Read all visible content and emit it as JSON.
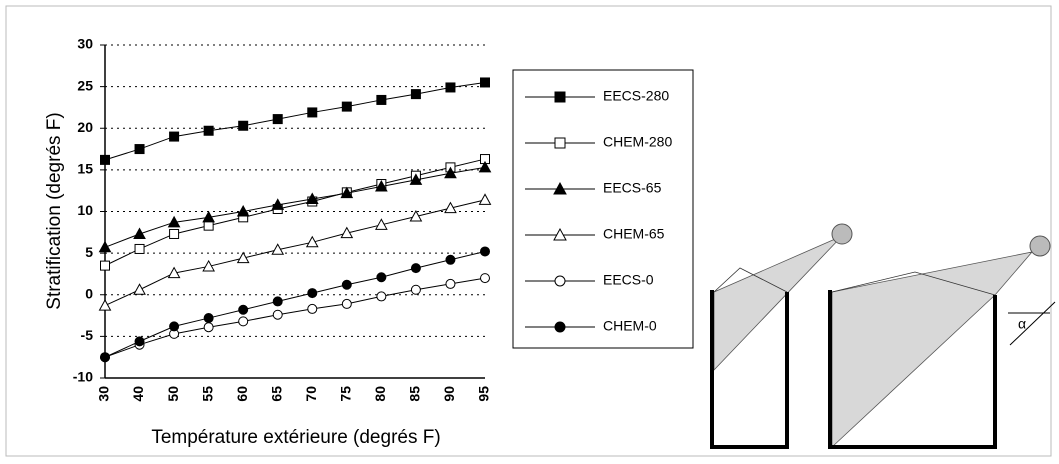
{
  "chart_data": {
    "type": "line",
    "y_label": "Stratification (degrés F)",
    "x_label": "Température extérieure (degrés F)",
    "categories": [
      30,
      40,
      50,
      55,
      60,
      65,
      70,
      75,
      80,
      85,
      90,
      95
    ],
    "ylim": [
      -10,
      30
    ],
    "yticks": [
      -10,
      -5,
      0,
      5,
      10,
      15,
      20,
      25,
      30
    ],
    "grid": true,
    "series": [
      {
        "name": "EECS-280",
        "color": "#000000",
        "marker": "square",
        "filled": true,
        "values": [
          16.2,
          17.5,
          19,
          19.7,
          20.3,
          21.1,
          21.9,
          22.6,
          23.4,
          24.1,
          24.9,
          25.5
        ]
      },
      {
        "name": "CHEM-280",
        "color": "#000000",
        "marker": "square",
        "filled": false,
        "values": [
          3.5,
          5.5,
          7.3,
          8.3,
          9.3,
          10.3,
          11.2,
          12.3,
          13.3,
          14.3,
          15.3,
          16.3
        ]
      },
      {
        "name": "EECS-65",
        "color": "#000000",
        "marker": "triangle",
        "filled": true,
        "values": [
          5.7,
          7.3,
          8.7,
          9.3,
          10,
          10.8,
          11.5,
          12.2,
          13,
          13.8,
          14.6,
          15.3
        ]
      },
      {
        "name": "CHEM-65",
        "color": "#000000",
        "marker": "triangle",
        "filled": false,
        "values": [
          -1.3,
          0.6,
          2.6,
          3.4,
          4.4,
          5.4,
          6.3,
          7.4,
          8.4,
          9.4,
          10.4,
          11.4
        ]
      },
      {
        "name": "EECS-0",
        "color": "#000000",
        "marker": "circle",
        "filled": false,
        "values": [
          -7.5,
          -6,
          -4.7,
          -3.9,
          -3.2,
          -2.4,
          -1.7,
          -1.1,
          -0.2,
          0.6,
          1.3,
          2
        ]
      },
      {
        "name": "CHEM-0",
        "color": "#000000",
        "marker": "circle",
        "filled": true,
        "values": [
          -7.5,
          -5.6,
          -3.8,
          -2.8,
          -1.8,
          -0.8,
          0.2,
          1.2,
          2.1,
          3.2,
          4.2,
          5.2
        ]
      }
    ]
  },
  "diagram": {
    "angle_label": "α"
  }
}
